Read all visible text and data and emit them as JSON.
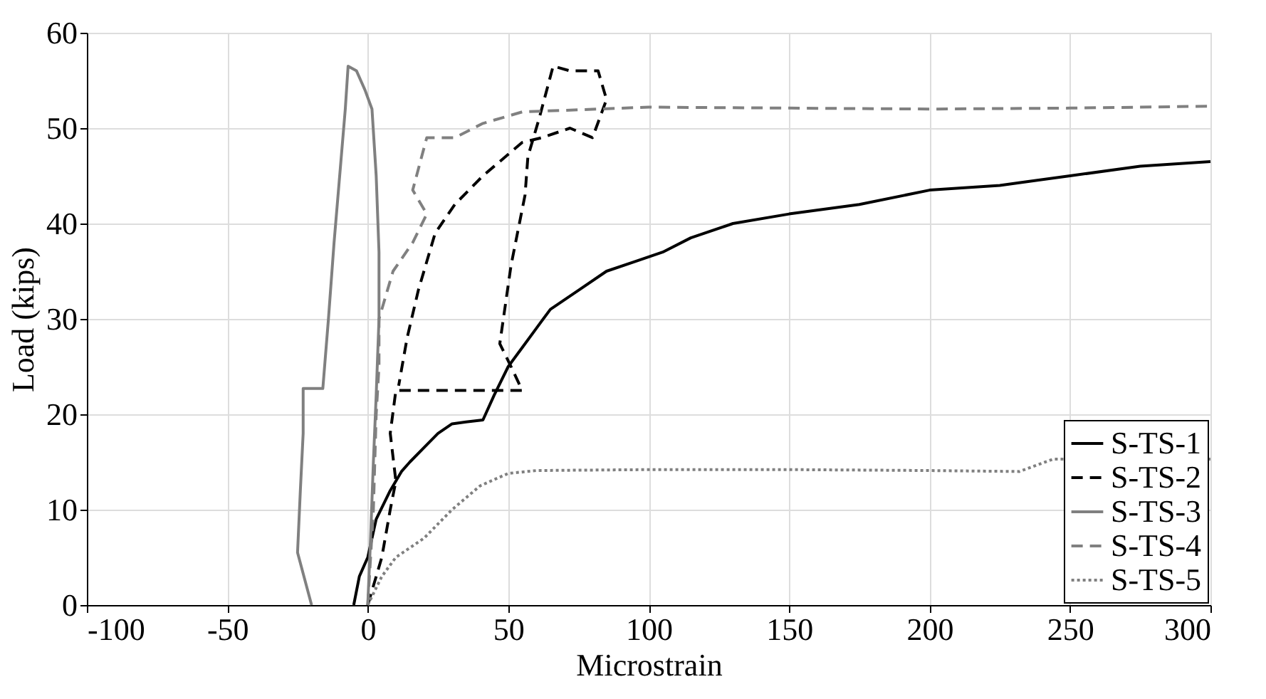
{
  "chart_data": {
    "type": "line",
    "xlabel": "Microstrain",
    "ylabel": "Load (kips)",
    "xlim": [
      -100,
      300
    ],
    "ylim": [
      0,
      60
    ],
    "xticks": [
      -100,
      -50,
      0,
      50,
      100,
      150,
      200,
      250,
      300
    ],
    "yticks": [
      0,
      10,
      20,
      30,
      40,
      50,
      60
    ],
    "grid": true,
    "legend": "bottom right",
    "marker": "none",
    "series": [
      {
        "name": "S-TS-1",
        "color": "#000000",
        "line_style": "solid",
        "x": [
          -5,
          -3,
          0,
          3,
          8,
          12,
          15,
          20,
          25,
          30,
          35,
          41,
          45,
          50,
          55,
          60,
          65,
          75,
          85,
          95,
          105,
          115,
          130,
          150,
          175,
          200,
          225,
          250,
          275,
          300
        ],
        "values": [
          0,
          3,
          5,
          9,
          12,
          14,
          15,
          16.5,
          18,
          19,
          19.2,
          19.4,
          22,
          25,
          27,
          29,
          31,
          33,
          35,
          36,
          37,
          38.5,
          40,
          41,
          42,
          43.5,
          44,
          45,
          46,
          46.5
        ]
      },
      {
        "name": "S-TS-2",
        "color": "#000000",
        "line_style": "dashed",
        "x": [
          0,
          5,
          8,
          10,
          8,
          10,
          55,
          51,
          47,
          51,
          56,
          57,
          61,
          66,
          72,
          82,
          85,
          80,
          72,
          62,
          55,
          41,
          31,
          24,
          18,
          14,
          11
        ],
        "values": [
          0,
          5,
          10,
          13,
          18,
          22.5,
          22.5,
          25,
          27.4,
          35.6,
          43,
          47,
          51,
          56.5,
          56,
          56,
          53,
          49,
          50,
          49,
          48.5,
          45,
          42,
          39,
          33,
          28,
          23
        ]
      },
      {
        "name": "S-TS-3",
        "color": "#808080",
        "line_style": "solid",
        "x": [
          -20,
          -25,
          -24,
          -23,
          -23,
          -16,
          -14,
          -12,
          -10,
          -8,
          -7,
          -4,
          -1,
          1.5,
          3,
          4,
          4,
          3,
          2,
          1,
          0
        ],
        "values": [
          0,
          5.5,
          12,
          18,
          22.7,
          22.7,
          30,
          38,
          45,
          52,
          56.5,
          56,
          54,
          52,
          45,
          37,
          30,
          22,
          15,
          7,
          0
        ]
      },
      {
        "name": "S-TS-4",
        "color": "#808080",
        "line_style": "dashed",
        "x": [
          0,
          1,
          2,
          3,
          4,
          4,
          9,
          16,
          21,
          16,
          21,
          31,
          41,
          55,
          100,
          150,
          200,
          250,
          300
        ],
        "values": [
          0,
          5,
          10,
          20,
          25,
          30,
          35,
          38,
          41,
          43.5,
          49,
          49,
          50.5,
          51.7,
          52.2,
          52.1,
          52,
          52.1,
          52.3
        ]
      },
      {
        "name": "S-TS-5",
        "color": "#808080",
        "line_style": "dotted",
        "x": [
          0,
          5,
          10,
          20,
          30,
          40,
          50,
          60,
          100,
          150,
          200,
          232,
          244,
          300
        ],
        "values": [
          0,
          3,
          5,
          7,
          10,
          12.5,
          13.8,
          14.1,
          14.2,
          14.2,
          14.1,
          14,
          15.3,
          15.3
        ]
      }
    ]
  }
}
